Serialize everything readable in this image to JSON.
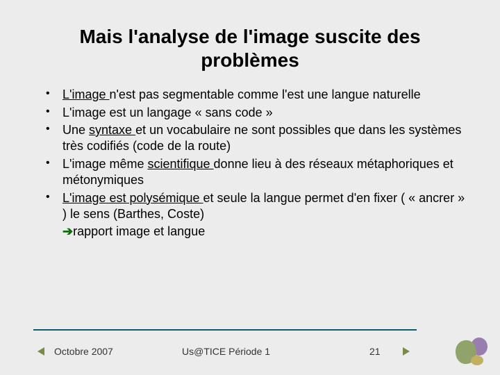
{
  "colors": {
    "background": "#ececec",
    "text": "#000000",
    "rule": "#0f5a6e",
    "arrow": "#0a6e0a",
    "nav_triangle": "#7a8a4a"
  },
  "typography": {
    "title_fontsize": 28,
    "body_fontsize": 18,
    "footer_fontsize": 14,
    "font_family": "Arial"
  },
  "title": "Mais l'analyse de l'image suscite des problèmes",
  "bullets": {
    "b1_u": "L'image ",
    "b1_r": "n'est pas segmentable comme l'est une langue naturelle",
    "b2": "L'image est un langage « sans code »",
    "b3_a": "Une ",
    "b3_u": "syntaxe ",
    "b3_b": "et un vocabulaire ne sont possibles que dans les systèmes très codifiés (code de la route)",
    "b4_a": "L'image même ",
    "b4_u": "scientifique ",
    "b4_b": "donne lieu à des réseaux métaphoriques et métonymiques",
    "b5_u": "L'image est polysémique ",
    "b5_r": "et seule la langue permet d'en fixer ( « ancrer » ) le sens (Barthes, Coste)",
    "b5_arrow": "rapport image et langue"
  },
  "footer": {
    "date": "Octobre 2007",
    "center": "Us@TICE Période 1",
    "page": "21"
  }
}
